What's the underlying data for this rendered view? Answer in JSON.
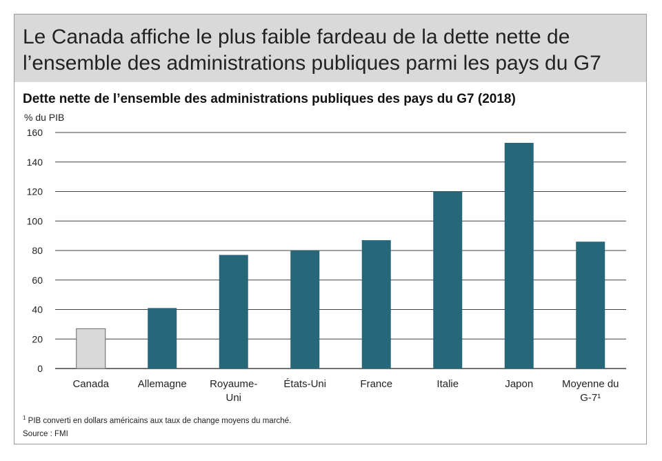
{
  "banner": {
    "title_line1": "Le Canada affiche le plus faible fardeau de la dette nette de",
    "title_line2": "l’ensemble des administrations publiques parmi les pays du G7"
  },
  "footnote": {
    "marker": "1",
    "text": "PIB converti en dollars américains aux taux de change moyens du marché."
  },
  "source": "Source : FMI",
  "colors": {
    "highlight_bar": "#d9d9d9",
    "bar": "#26677a",
    "grid": "#404040",
    "banner": "#d9d9d9"
  },
  "chart_data": {
    "type": "bar",
    "title": "Dette nette de l’ensemble des administrations publiques des pays du G7 (2018)",
    "ylabel": "% du PIB",
    "ylim": [
      0,
      160
    ],
    "yticks": [
      0,
      20,
      40,
      60,
      80,
      100,
      120,
      140,
      160
    ],
    "grid": true,
    "categories": [
      [
        "Canada"
      ],
      [
        "Allemagne"
      ],
      [
        "Royaume-",
        "Uni"
      ],
      [
        "États-Uni"
      ],
      [
        "France"
      ],
      [
        "Italie"
      ],
      [
        "Japon"
      ],
      [
        "Moyenne du",
        "G-7¹"
      ]
    ],
    "values": [
      27,
      41,
      77,
      80,
      87,
      120,
      153,
      86
    ],
    "highlight_index": 0
  }
}
